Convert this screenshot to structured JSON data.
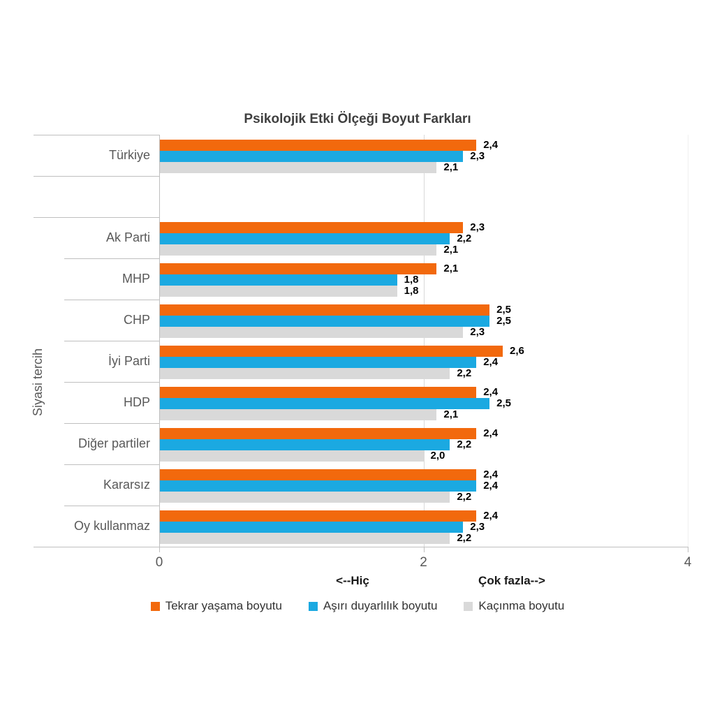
{
  "chart_data": {
    "type": "bar",
    "orientation": "horizontal",
    "title": "Psikolojik Etki Ölçeği Boyut Farkları",
    "ylabel": "Siyasi tercih",
    "decimal_format": "comma",
    "grid": "vertical-at-2-and-4",
    "legend_position": "bottom",
    "x_axis": {
      "min": 0,
      "max": 4,
      "ticks": [
        0,
        2,
        4
      ],
      "tick_labels": [
        "0",
        "2",
        "4"
      ],
      "caption_left": "<--Hiç",
      "caption_right": "Çok fazla-->"
    },
    "categories": [
      "Türkiye",
      "",
      "Ak Parti",
      "MHP",
      "CHP",
      "İyi Parti",
      "HDP",
      "Diğer partiler",
      "Kararsız",
      "Oy kullanmaz"
    ],
    "series": [
      {
        "name": "Tekrar yaşama boyutu",
        "color": "#F2690D",
        "values": [
          2.4,
          null,
          2.3,
          2.1,
          2.5,
          2.6,
          2.4,
          2.4,
          2.4,
          2.4
        ]
      },
      {
        "name": "Aşırı duyarlılık boyutu",
        "color": "#1BA9E1",
        "values": [
          2.3,
          null,
          2.2,
          1.8,
          2.5,
          2.4,
          2.5,
          2.2,
          2.4,
          2.3
        ]
      },
      {
        "name": "Kaçınma boyutu",
        "color": "#D9D9D9",
        "values": [
          2.1,
          null,
          2.1,
          1.8,
          2.3,
          2.2,
          2.1,
          2.0,
          2.2,
          2.2
        ]
      }
    ],
    "colors": {
      "axis_line": "#bfbfbf",
      "gridline_mid": "#d9d9d9",
      "gridline_right": "#f0f0f0",
      "title_text": "#3f3f3f",
      "category_text": "#595959",
      "data_label_text": "#000000"
    }
  }
}
